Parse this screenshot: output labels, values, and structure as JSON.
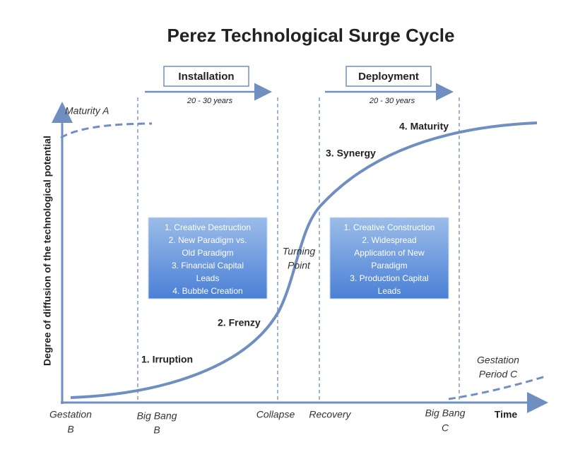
{
  "title": "Perez Technological Surge Cycle",
  "y_axis_label": "Degree of diffusion of the technological potential",
  "x_axis_label": "Time",
  "phases": [
    {
      "label": "Installation",
      "duration": "20 - 30 years"
    },
    {
      "label": "Deployment",
      "duration": "20 - 30 years"
    }
  ],
  "stages": [
    "1. Irruption",
    "2. Frenzy",
    "3. Synergy",
    "4. Maturity"
  ],
  "boxes": [
    [
      "1. Creative Destruction",
      "2. New Paradigm vs.",
      "Old Paradigm",
      "3. Financial Capital",
      "Leads",
      "4. Bubble Creation"
    ],
    [
      "1. Creative Construction",
      "2. Widespread",
      "Application of New",
      "Paradigm",
      "3. Production Capital",
      "Leads"
    ]
  ],
  "annotations": {
    "maturity_a": "Maturity A",
    "turning_point": [
      "Turning",
      "Point"
    ],
    "gestation_c": [
      "Gestation",
      "Period C"
    ]
  },
  "x_labels": {
    "gestation_b": [
      "Gestation",
      "B"
    ],
    "big_bang_b": [
      "Big Bang",
      "B"
    ],
    "collapse": "Collapse",
    "recovery": "Recovery",
    "big_bang_c": [
      "Big Bang",
      "C"
    ]
  }
}
